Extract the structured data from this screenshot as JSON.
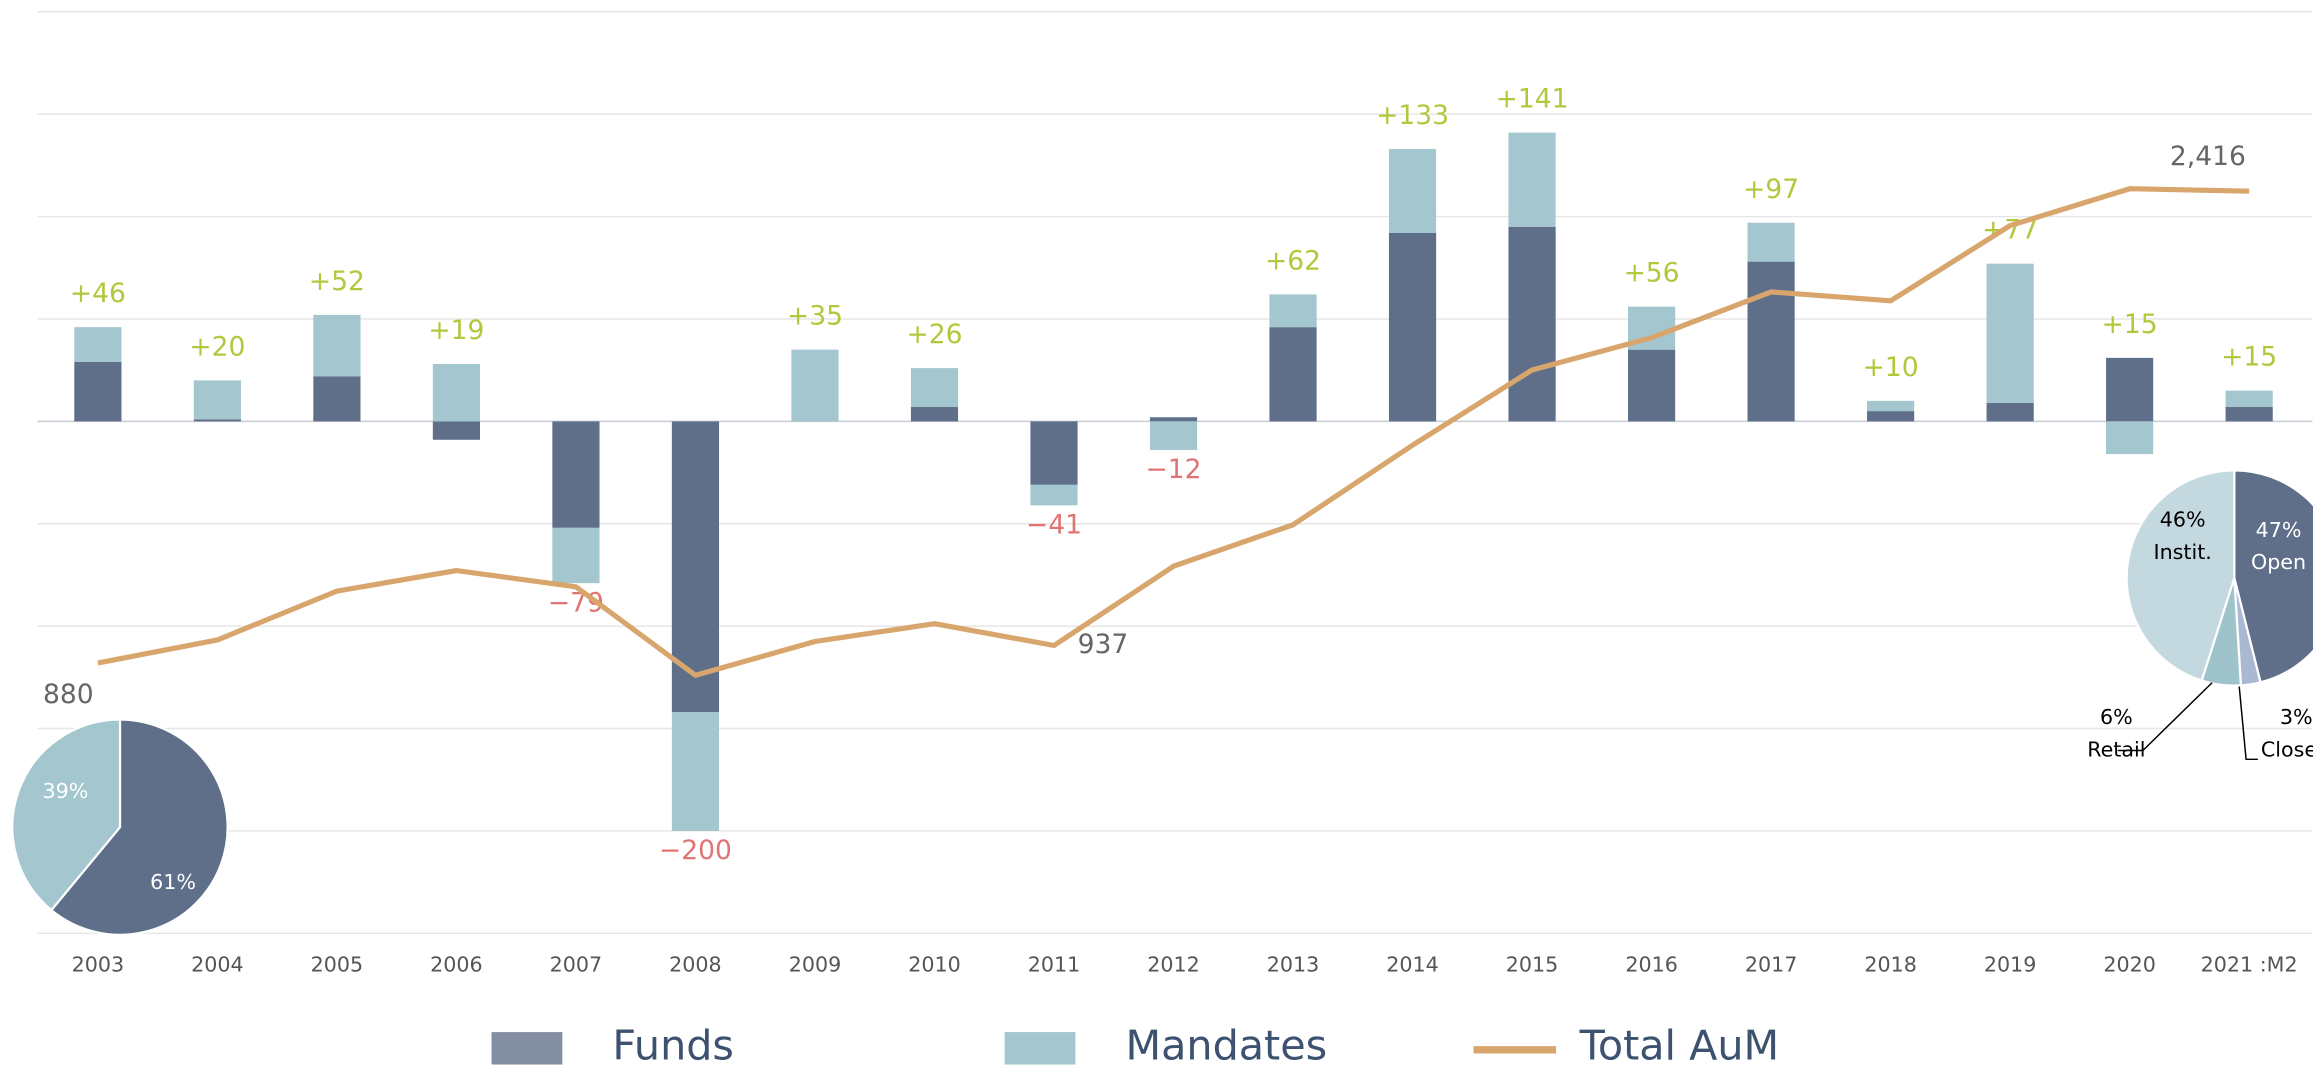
{
  "chart_data": [
    {
      "type": "bar",
      "categories": [
        "2003",
        "2004",
        "2005",
        "2006",
        "2007",
        "2008",
        "2009",
        "2010",
        "2011",
        "2012",
        "2013",
        "2014",
        "2015",
        "2016",
        "2017",
        "2018",
        "2019",
        "2020",
        "2021 :M2"
      ],
      "series": [
        {
          "name": "Funds",
          "color": "#5f6f89",
          "legend_color": "#848ea3",
          "values": [
            29,
            1,
            22,
            -9,
            -52,
            -142,
            0,
            7,
            -31,
            2,
            46,
            92,
            95,
            35,
            78,
            5,
            9,
            31,
            7
          ]
        },
        {
          "name": "Mandates",
          "color": "#a3c6cf",
          "values": [
            17,
            19,
            30,
            28,
            -27,
            -58,
            35,
            19,
            -10,
            -14,
            16,
            41,
            46,
            21,
            19,
            5,
            68,
            -16,
            8
          ]
        },
        {
          "name": "Total AuM",
          "type": "line",
          "axis": "y2",
          "color": "#d8a56c",
          "values": [
            880,
            955,
            1114,
            1181,
            1128,
            840,
            950,
            1008,
            937,
            1195,
            1330,
            1589,
            1834,
            1939,
            2088,
            2059,
            2304,
            2424,
            2416
          ],
          "value_labels": [
            "880",
            null,
            null,
            null,
            null,
            null,
            null,
            null,
            "937",
            null,
            null,
            null,
            null,
            null,
            null,
            null,
            null,
            null,
            "2,416"
          ]
        }
      ],
      "totals": {
        "values": [
          46,
          20,
          52,
          19,
          -79,
          -200,
          35,
          26,
          -41,
          -12,
          62,
          133,
          141,
          56,
          97,
          10,
          77,
          15,
          15
        ],
        "value_labels": [
          "+46",
          "+20",
          "+52",
          "+19",
          "−79",
          "−200",
          "+35",
          "+26",
          "−41",
          "−12",
          "+62",
          "+133",
          "+141",
          "+56",
          "+97",
          "+10",
          "+77",
          "+15",
          "+15"
        ]
      },
      "ylim": [
        -250,
        200
      ],
      "yticks": [
        -250,
        -200,
        -150,
        -100,
        -50,
        0,
        50,
        100,
        150,
        200
      ],
      "y2lim": [
        0,
        3000
      ],
      "grid": true,
      "legend": "bottom"
    },
    {
      "type": "pie",
      "values": [
        61,
        39
      ],
      "value_labels": [
        "61%",
        "39%"
      ],
      "colors": [
        "#5f6f89",
        "#a3c6cf"
      ]
    },
    {
      "type": "pie",
      "labels": [
        "Open",
        "Closed",
        "Retail",
        "Instit."
      ],
      "values": [
        47,
        3,
        6,
        46
      ],
      "value_labels": [
        "47%",
        "3%",
        "6%",
        "46%"
      ],
      "colors": [
        "#5f6f89",
        "#a9b9d2",
        "#9fc3cb",
        "#c3d8df"
      ]
    }
  ]
}
